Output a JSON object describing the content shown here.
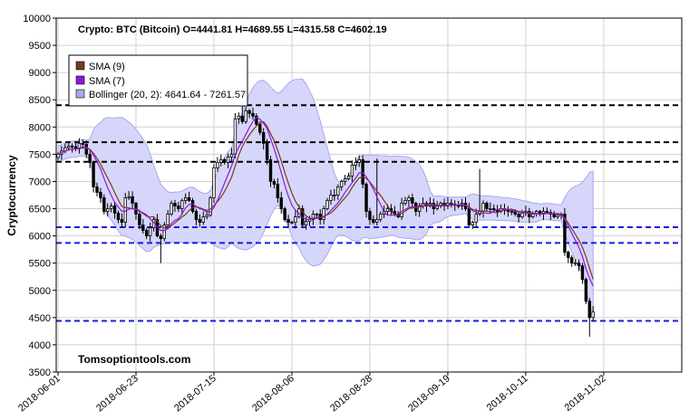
{
  "chart_data": {
    "type": "candlestick",
    "title": "Crypto: BTC (Bitcoin) O=4441.81  H=4689.55  L=4315.58  C=4602.19",
    "ylabel": "Cryptocurrency",
    "watermark": "Tomsoptiontools.com",
    "ylim": [
      3500,
      10000
    ],
    "yticks": [
      "3500",
      "4000",
      "4500",
      "5000",
      "5500",
      "6000",
      "6500",
      "7000",
      "7500",
      "8000",
      "8500",
      "9000",
      "9500",
      "10000"
    ],
    "xticks": [
      "2018-06-01",
      "2018-06-23",
      "2018-07-15",
      "2018-08-06",
      "2018-08-28",
      "2018-09-19",
      "2018-10-11",
      "2018-11-02"
    ],
    "x_start": "2018-06-01",
    "x_end": "2018-11-23",
    "grid": true,
    "legend": {
      "placement": "top-left",
      "entries": [
        {
          "label": "SMA  (9)",
          "color": "#7a3b1a"
        },
        {
          "label": "SMA  (7)",
          "color": "#8b1bd6"
        },
        {
          "label": "Bollinger (20, 2): 4641.64 - 7261.57",
          "color": "#a8a8f0"
        }
      ]
    },
    "horizontal_lines": [
      {
        "value": 8400,
        "color": "#000000",
        "style": "dashed"
      },
      {
        "value": 7720,
        "color": "#000000",
        "style": "dashed"
      },
      {
        "value": 7360,
        "color": "#000000",
        "style": "dashed"
      },
      {
        "value": 6160,
        "color": "#1a1ae6",
        "style": "dashed"
      },
      {
        "value": 5870,
        "color": "#1a1ae6",
        "style": "dashed"
      },
      {
        "value": 4440,
        "color": "#1a1ae6",
        "style": "dashed"
      }
    ],
    "colors": {
      "up": "#ffffff",
      "down": "#000000",
      "band_fill": "#d6d6fa",
      "band_edge": "#a8a8f0",
      "sma9": "#7a3b1a",
      "sma7": "#8b1bd6"
    },
    "close": [
      7500,
      7560,
      7620,
      7650,
      7640,
      7600,
      7700,
      7680,
      7500,
      7350,
      6900,
      6800,
      6700,
      6450,
      6500,
      6550,
      6420,
      6300,
      6250,
      6700,
      6720,
      6600,
      6400,
      6200,
      6100,
      6000,
      6150,
      6300,
      6000,
      5950,
      6200,
      6400,
      6600,
      6550,
      6500,
      6650,
      6700,
      6650,
      6450,
      6300,
      6250,
      6350,
      6380,
      6700,
      7250,
      7350,
      7400,
      7350,
      7450,
      7500,
      8150,
      8200,
      8100,
      8300,
      8250,
      8200,
      8050,
      7900,
      7700,
      7400,
      7000,
      6950,
      6700,
      6500,
      6300,
      6250,
      6250,
      6350,
      6500,
      6200,
      6270,
      6300,
      6400,
      6400,
      6300,
      6500,
      6650,
      6750,
      6750,
      6900,
      7000,
      7050,
      7100,
      7300,
      7350,
      7400,
      6950,
      6450,
      6300,
      6250,
      6300,
      6400,
      6450,
      6500,
      6450,
      6400,
      6350,
      6600,
      6650,
      6700,
      6600,
      6450,
      6550,
      6600,
      6550,
      6600,
      6500,
      6550,
      6600,
      6550,
      6600,
      6580,
      6560,
      6550,
      6600,
      6500,
      6200,
      6250,
      6400,
      6450,
      6600,
      6500,
      6500,
      6480,
      6450,
      6500,
      6470,
      6450,
      6450,
      6400,
      6350,
      6420,
      6450,
      6350,
      6400,
      6450,
      6400,
      6450,
      6430,
      6400,
      6350,
      6380,
      6400,
      5700,
      5600,
      5500,
      5500,
      5450,
      5200,
      4800,
      4500,
      4602
    ]
  }
}
